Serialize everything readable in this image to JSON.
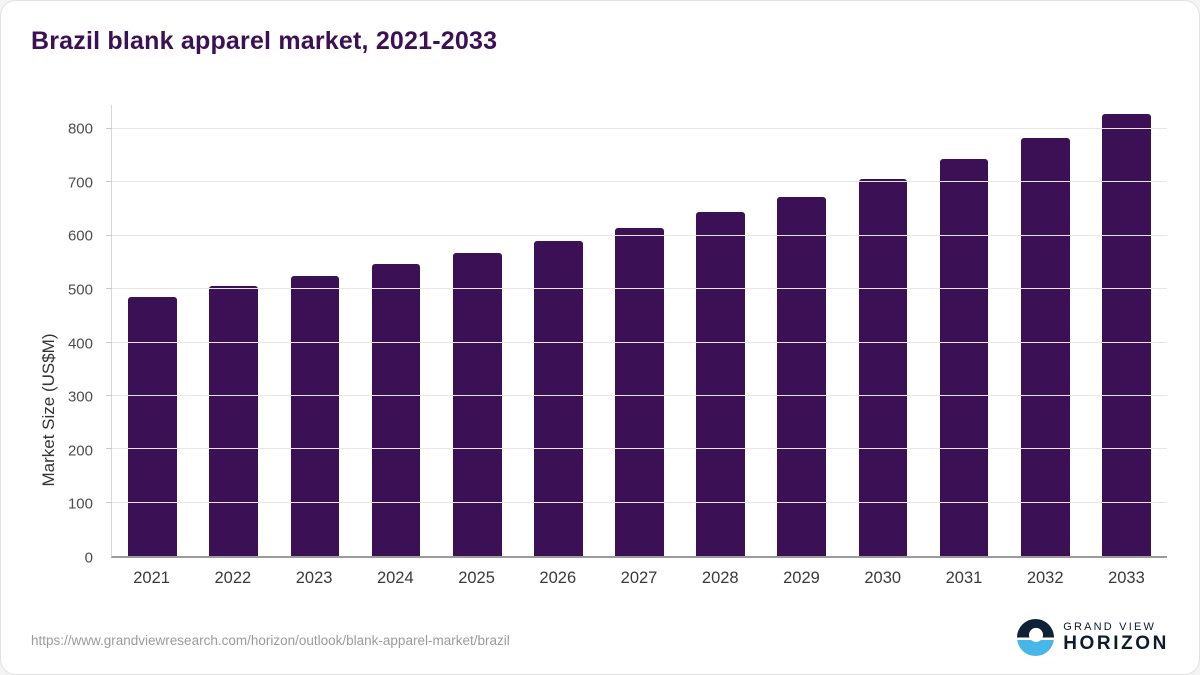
{
  "page": {
    "title": "Brazil blank apparel market, 2021-2033",
    "source_url": "https://www.grandviewresearch.com/horizon/outlook/blank-apparel-market/brazil",
    "logo": {
      "line1": "GRAND VIEW",
      "line2": "HORIZON"
    }
  },
  "colors": {
    "bar": "#3b1055",
    "title": "#3b1055",
    "logo_navy": "#0e2137",
    "logo_blue": "#46b7e8",
    "gridline": "#e6e6e6",
    "axis": "#9b9b9b"
  },
  "chart_data": {
    "type": "bar",
    "title": "Brazil blank apparel market, 2021-2033",
    "categories": [
      "2021",
      "2022",
      "2023",
      "2024",
      "2025",
      "2026",
      "2027",
      "2028",
      "2029",
      "2030",
      "2031",
      "2032",
      "2033"
    ],
    "values": [
      485,
      505,
      525,
      547,
      568,
      590,
      615,
      644,
      673,
      706,
      744,
      784,
      828
    ],
    "xlabel": "",
    "ylabel": "Market Size (US$M)",
    "ylim": [
      0,
      845
    ],
    "yticks": [
      0,
      100,
      200,
      300,
      400,
      500,
      600,
      700,
      800
    ],
    "grid": true,
    "legend": false,
    "bar_color": "#3b1055"
  }
}
